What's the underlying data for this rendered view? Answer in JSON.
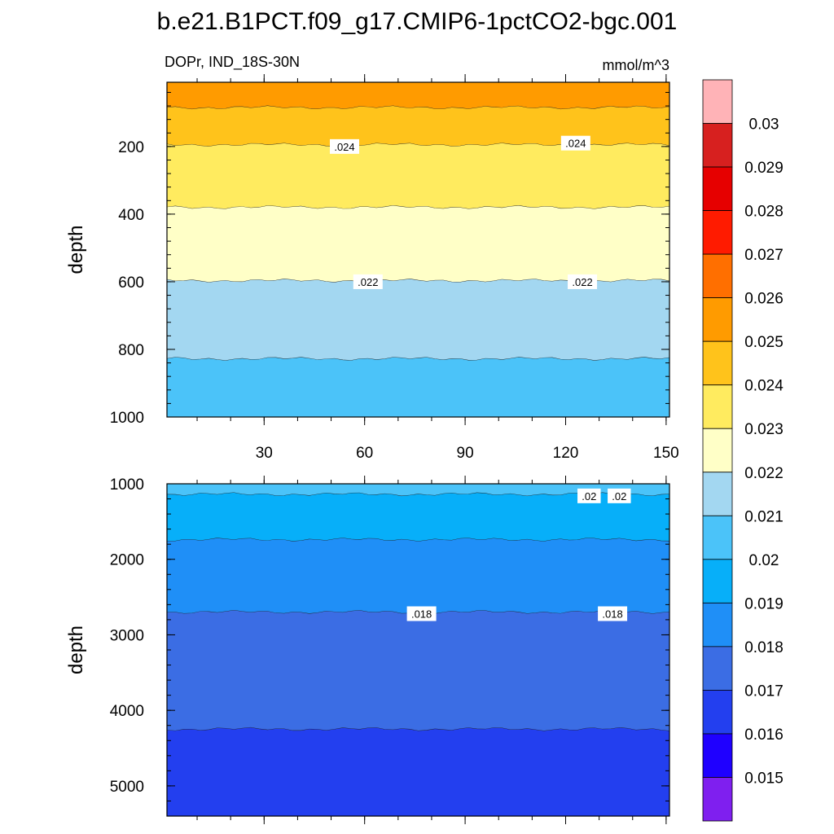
{
  "title": "b.e21.B1PCT.f09_g17.CMIP6-1pctCO2-bgc.001",
  "chart_data": {
    "type": "heatmap",
    "left_string": "DOPr, IND_18S-30N",
    "right_string": "mmol/m^3",
    "colorbar": {
      "levels": [
        "0.015",
        "0.016",
        "0.017",
        "0.018",
        "0.019",
        "0.02",
        "0.021",
        "0.022",
        "0.023",
        "0.024",
        "0.025",
        "0.026",
        "0.027",
        "0.028",
        "0.029",
        "0.03"
      ],
      "colors": [
        "#7f1fef",
        "#1f00ff",
        "#233fef",
        "#3b6de4",
        "#1f8ff7",
        "#07aff9",
        "#4bc3f9",
        "#a3d7f1",
        "#ffffc7",
        "#ffeb5f",
        "#ffc31b",
        "#ff9b00",
        "#ff6f00",
        "#ff1b00",
        "#e60000",
        "#d7201f",
        "#ffb3b7"
      ]
    },
    "panels": [
      {
        "name": "upper",
        "ylabel": "depth",
        "xlim": [
          1,
          151
        ],
        "ylim": [
          1000,
          10
        ],
        "yticks": [
          "200",
          "400",
          "600",
          "800",
          "1000"
        ],
        "xticks": [
          "30",
          "60",
          "90",
          "120",
          "150"
        ],
        "bands": [
          {
            "color": "#ff9b00",
            "top": 10,
            "bottom": 85
          },
          {
            "color": "#ffc31b",
            "top": 85,
            "bottom": 195
          },
          {
            "color": "#ffeb5f",
            "top": 195,
            "bottom": 380
          },
          {
            "color": "#ffffc7",
            "top": 380,
            "bottom": 597
          },
          {
            "color": "#a3d7f1",
            "top": 597,
            "bottom": 828
          },
          {
            "color": "#4bc3f9",
            "top": 828,
            "bottom": 1000
          }
        ],
        "labels": [
          {
            "text": ".024",
            "x": 54,
            "y": 200
          },
          {
            "text": ".024",
            "x": 123,
            "y": 190
          },
          {
            "text": ".022",
            "x": 61,
            "y": 600
          },
          {
            "text": ".022",
            "x": 125,
            "y": 600
          }
        ]
      },
      {
        "name": "lower",
        "ylabel": "depth",
        "xlim": [
          1,
          151
        ],
        "ylim": [
          5400,
          1000
        ],
        "yticks": [
          "1000",
          "2000",
          "3000",
          "4000",
          "5000"
        ],
        "xticks": [],
        "bands": [
          {
            "color": "#4bc3f9",
            "top": 1000,
            "bottom": 1140
          },
          {
            "color": "#07aff9",
            "top": 1140,
            "bottom": 1740
          },
          {
            "color": "#1f8ff7",
            "top": 1740,
            "bottom": 2700
          },
          {
            "color": "#3b6de4",
            "top": 2700,
            "bottom": 4250
          },
          {
            "color": "#233fef",
            "top": 4250,
            "bottom": 5400
          }
        ],
        "labels": [
          {
            "text": ".02",
            "x": 127,
            "y": 1160
          },
          {
            "text": ".02",
            "x": 136,
            "y": 1160
          },
          {
            "text": ".018",
            "x": 77,
            "y": 2720
          },
          {
            "text": ".018",
            "x": 134,
            "y": 2720
          }
        ]
      }
    ]
  }
}
